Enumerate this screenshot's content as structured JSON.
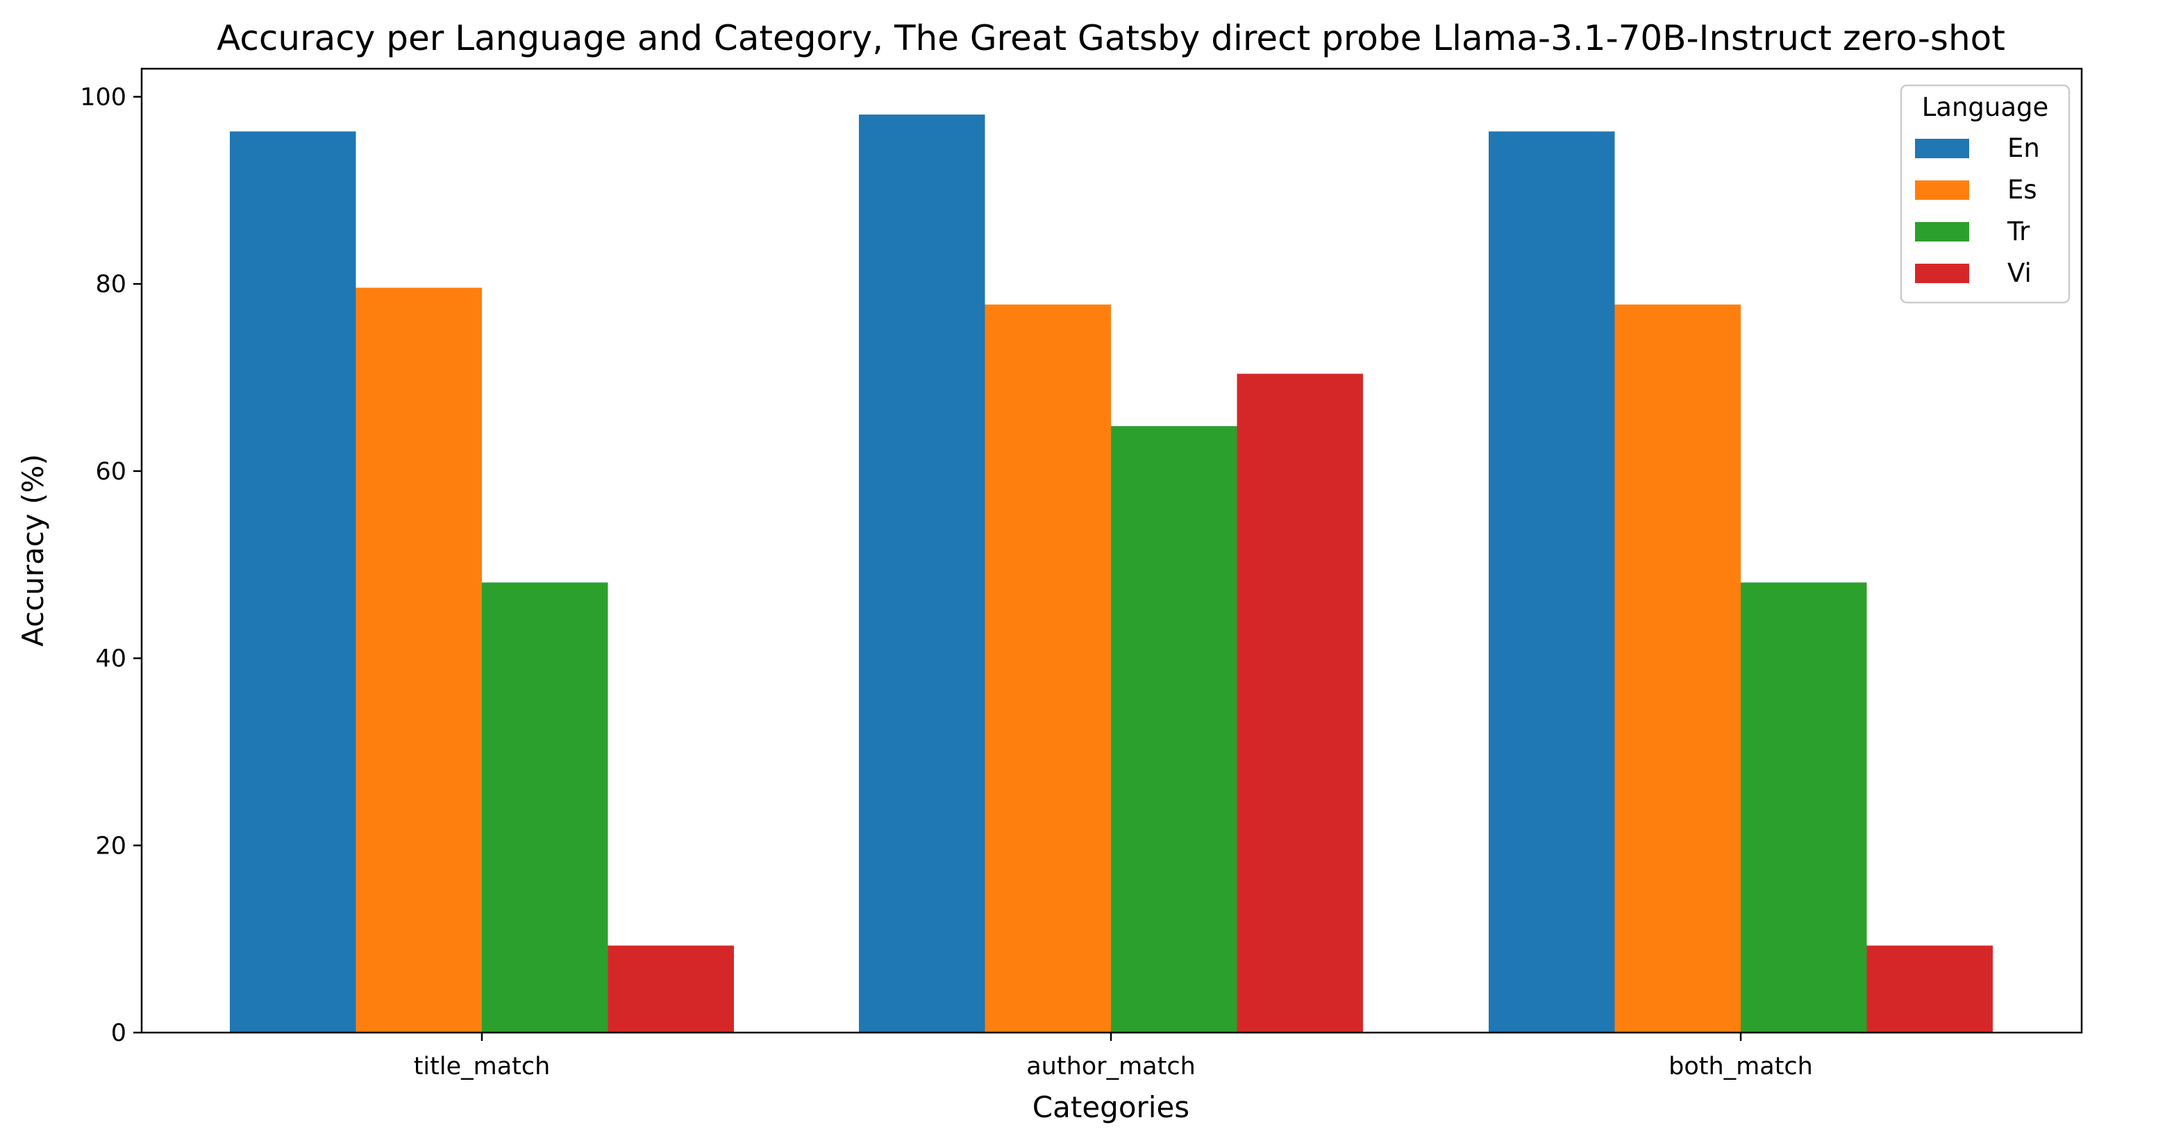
{
  "chart_data": {
    "type": "bar",
    "title": "Accuracy per Language and Category, The Great Gatsby direct probe Llama-3.1-70B-Instruct zero-shot",
    "xlabel": "Categories",
    "ylabel": "Accuracy (%)",
    "categories": [
      "title_match",
      "author_match",
      "both_match"
    ],
    "series": [
      {
        "name": "En",
        "color": "#1f77b4",
        "values": [
          96.3,
          98.1,
          96.3
        ]
      },
      {
        "name": "Es",
        "color": "#ff7f0e",
        "values": [
          79.6,
          77.8,
          77.8
        ]
      },
      {
        "name": "Tr",
        "color": "#2ca02c",
        "values": [
          48.1,
          64.8,
          48.1
        ]
      },
      {
        "name": "Vi",
        "color": "#d62728",
        "values": [
          9.3,
          70.4,
          9.3
        ]
      }
    ],
    "ylim": [
      0,
      103
    ],
    "yticks": [
      0,
      20,
      40,
      60,
      80,
      100
    ],
    "grid": false,
    "legend": {
      "title": "Language",
      "position": "top-right"
    }
  }
}
